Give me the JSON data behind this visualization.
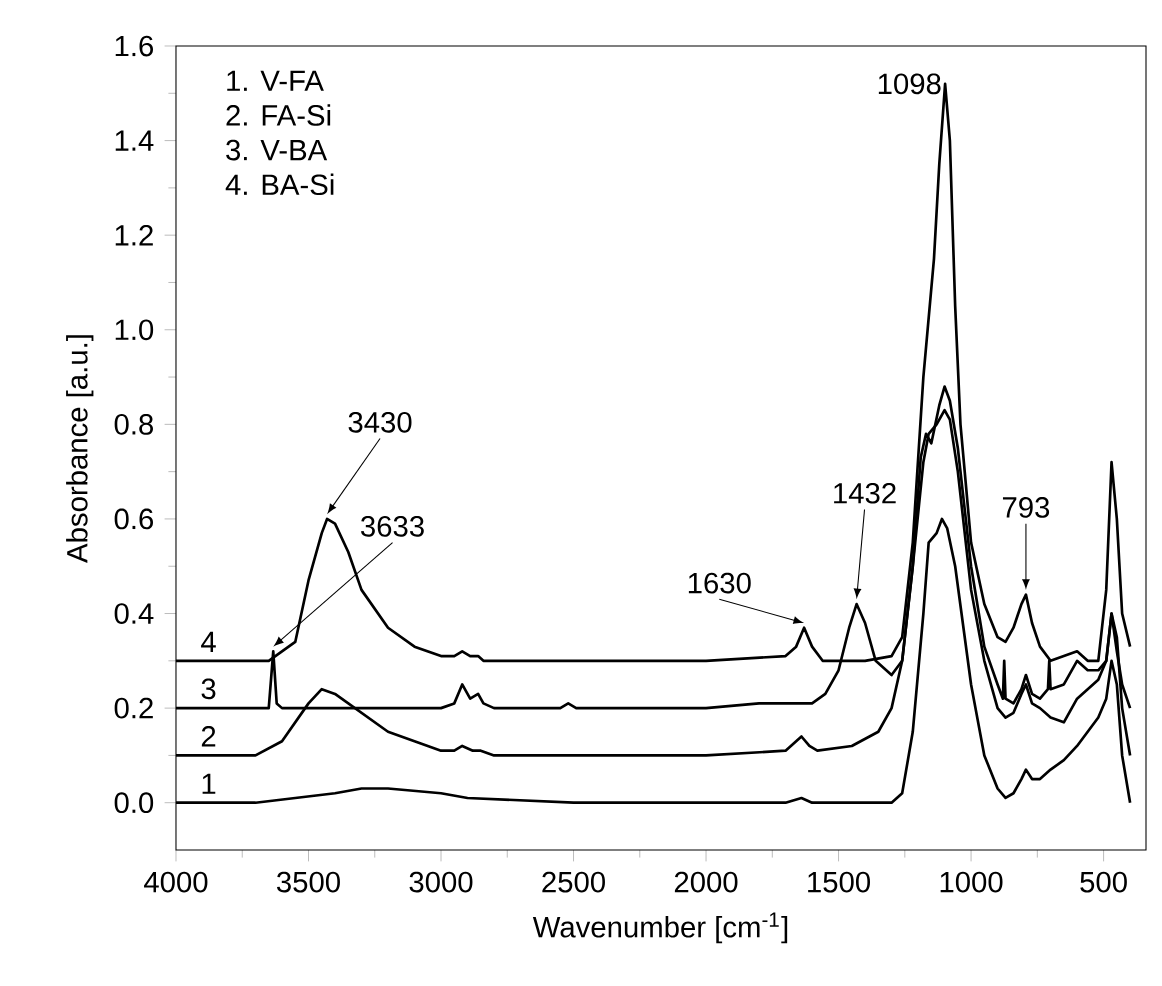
{
  "chart_data": {
    "type": "line",
    "xlabel": "Wavenumber [cm$^{-1}$]",
    "ylabel": "Absorbance [a.u.]",
    "xlim": [
      4000,
      340
    ],
    "ylim": [
      -0.1,
      1.6
    ],
    "xticks": [
      4000,
      3500,
      3000,
      2500,
      2000,
      1500,
      1000,
      500
    ],
    "yticks": [
      {
        "value": 0,
        "label": "0.0"
      },
      {
        "value": 0.2,
        "label": "0.2"
      },
      {
        "value": 0.4,
        "label": "0.4"
      },
      {
        "value": 0.6,
        "label": "0.6"
      },
      {
        "value": 0.8,
        "label": "0.8"
      },
      {
        "value": 1.0,
        "label": "1.0"
      },
      {
        "value": 1.2,
        "label": "1.2"
      },
      {
        "value": 1.4,
        "label": "1.4"
      },
      {
        "value": 1.6,
        "label": "1.6"
      }
    ],
    "grid": false,
    "marker": "none",
    "line_style": "solid",
    "series": [
      {
        "color": "#000000",
        "x": [
          4000,
          3700,
          3550,
          3400,
          3300,
          3200,
          3000,
          2900,
          2500,
          2000,
          1700,
          1640,
          1600,
          1400,
          1300,
          1260,
          1220,
          1180,
          1160,
          1130,
          1110,
          1090,
          1060,
          1000,
          950,
          900,
          870,
          840,
          810,
          793,
          770,
          740,
          700,
          650,
          600,
          560,
          520,
          490,
          470,
          450,
          430,
          400
        ],
        "values": [
          0,
          0.0,
          0.01,
          0.02,
          0.03,
          0.03,
          0.02,
          0.01,
          0.0,
          0.0,
          0.0,
          0.01,
          0.0,
          0.0,
          0.0,
          0.02,
          0.15,
          0.4,
          0.55,
          0.57,
          0.6,
          0.58,
          0.5,
          0.25,
          0.1,
          0.03,
          0.01,
          0.02,
          0.05,
          0.07,
          0.05,
          0.05,
          0.07,
          0.09,
          0.12,
          0.15,
          0.18,
          0.22,
          0.3,
          0.25,
          0.1,
          0.0
        ]
      },
      {
        "color": "#000000",
        "x": [
          4000,
          3700,
          3600,
          3500,
          3450,
          3400,
          3300,
          3200,
          3100,
          3000,
          2950,
          2920,
          2880,
          2850,
          2800,
          2500,
          2000,
          1700,
          1660,
          1640,
          1610,
          1580,
          1450,
          1350,
          1300,
          1260,
          1220,
          1180,
          1160,
          1130,
          1100,
          1080,
          1050,
          1000,
          950,
          900,
          870,
          840,
          810,
          793,
          770,
          740,
          700,
          650,
          600,
          560,
          520,
          490,
          470,
          450,
          430,
          400
        ],
        "values": [
          0.1,
          0.1,
          0.13,
          0.21,
          0.24,
          0.23,
          0.19,
          0.15,
          0.13,
          0.11,
          0.11,
          0.12,
          0.11,
          0.11,
          0.1,
          0.1,
          0.1,
          0.11,
          0.13,
          0.14,
          0.12,
          0.11,
          0.12,
          0.15,
          0.2,
          0.3,
          0.5,
          0.72,
          0.78,
          0.8,
          0.83,
          0.81,
          0.7,
          0.45,
          0.3,
          0.2,
          0.18,
          0.19,
          0.23,
          0.25,
          0.21,
          0.2,
          0.18,
          0.17,
          0.22,
          0.24,
          0.26,
          0.3,
          0.4,
          0.35,
          0.2,
          0.1
        ]
      },
      {
        "color": "#000000",
        "x": [
          4000,
          3700,
          3650,
          3633,
          3620,
          3600,
          3300,
          3000,
          2950,
          2920,
          2890,
          2860,
          2840,
          2800,
          2550,
          2520,
          2490,
          2000,
          1800,
          1600,
          1550,
          1500,
          1460,
          1432,
          1400,
          1360,
          1300,
          1260,
          1220,
          1190,
          1170,
          1150,
          1120,
          1100,
          1080,
          1050,
          1000,
          950,
          900,
          880,
          875,
          870,
          840,
          810,
          793,
          770,
          740,
          710,
          705,
          700,
          650,
          600,
          560,
          520,
          490,
          470,
          450,
          430,
          400
        ],
        "values": [
          0.2,
          0.2,
          0.2,
          0.32,
          0.21,
          0.2,
          0.2,
          0.2,
          0.21,
          0.25,
          0.22,
          0.23,
          0.21,
          0.2,
          0.2,
          0.21,
          0.2,
          0.2,
          0.21,
          0.21,
          0.23,
          0.28,
          0.37,
          0.42,
          0.38,
          0.3,
          0.27,
          0.3,
          0.5,
          0.73,
          0.78,
          0.76,
          0.84,
          0.88,
          0.85,
          0.75,
          0.5,
          0.33,
          0.25,
          0.22,
          0.3,
          0.22,
          0.21,
          0.24,
          0.27,
          0.23,
          0.22,
          0.24,
          0.3,
          0.24,
          0.25,
          0.3,
          0.28,
          0.28,
          0.3,
          0.4,
          0.32,
          0.25,
          0.2
        ]
      },
      {
        "color": "#000000",
        "x": [
          4000,
          3650,
          3550,
          3500,
          3450,
          3430,
          3400,
          3350,
          3300,
          3200,
          3100,
          3000,
          2950,
          2920,
          2890,
          2860,
          2840,
          2800,
          2500,
          2000,
          1700,
          1660,
          1630,
          1600,
          1560,
          1500,
          1400,
          1300,
          1260,
          1220,
          1180,
          1140,
          1120,
          1098,
          1080,
          1060,
          1040,
          1000,
          950,
          900,
          870,
          840,
          810,
          793,
          770,
          740,
          700,
          650,
          600,
          560,
          520,
          490,
          470,
          450,
          430,
          400
        ],
        "values": [
          0.3,
          0.3,
          0.34,
          0.47,
          0.57,
          0.6,
          0.59,
          0.53,
          0.45,
          0.37,
          0.33,
          0.31,
          0.31,
          0.32,
          0.31,
          0.31,
          0.3,
          0.3,
          0.3,
          0.3,
          0.31,
          0.33,
          0.37,
          0.33,
          0.3,
          0.3,
          0.3,
          0.31,
          0.35,
          0.55,
          0.9,
          1.15,
          1.35,
          1.52,
          1.4,
          1.05,
          0.8,
          0.55,
          0.42,
          0.35,
          0.34,
          0.37,
          0.42,
          0.44,
          0.38,
          0.33,
          0.3,
          0.31,
          0.32,
          0.3,
          0.3,
          0.45,
          0.72,
          0.6,
          0.4,
          0.33
        ]
      }
    ],
    "annotations": [
      "1. V-FA",
      "2. FA-Si",
      "3. V-BA",
      "4. BA-Si",
      {
        "text": "1",
        "x": 3920,
        "y": 0.0
      },
      {
        "text": "2",
        "x": 3920,
        "y": 0.1
      },
      {
        "text": "3",
        "x": 3920,
        "y": 0.2
      },
      {
        "text": "4",
        "x": 3920,
        "y": 0.3
      },
      {
        "text": "3430",
        "x": 3430,
        "y": 0.6
      },
      {
        "text": "3633",
        "x": 3633,
        "y": 0.32
      },
      {
        "text": "1630",
        "x": 1630,
        "y": 0.37
      },
      {
        "text": "1432",
        "x": 1432,
        "y": 0.42
      },
      {
        "text": "793",
        "x": 793,
        "y": 0.44
      },
      {
        "text": "1098",
        "x": 1098,
        "y": 1.52
      }
    ]
  }
}
